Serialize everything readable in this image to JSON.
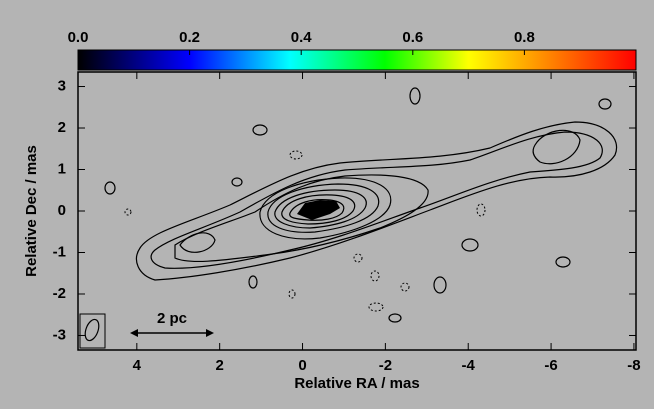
{
  "chart_data": {
    "type": "contour",
    "xlabel": "Relative RA / mas",
    "ylabel": "Relative Dec / mas",
    "annotation": "2 pc",
    "xlim": [
      5.42,
      -8.05
    ],
    "ylim": [
      -3.35,
      3.35
    ],
    "xticks": [
      4,
      2,
      0,
      -2,
      -4,
      -6,
      -8
    ],
    "yticks": [
      -3,
      -2,
      -1,
      0,
      1,
      2,
      3
    ],
    "colorbar": {
      "lim": [
        0,
        1
      ],
      "ticks": [
        {
          "value": 0,
          "label": "0.0"
        },
        0.2,
        0.4,
        0.6,
        0.8
      ]
    }
  }
}
